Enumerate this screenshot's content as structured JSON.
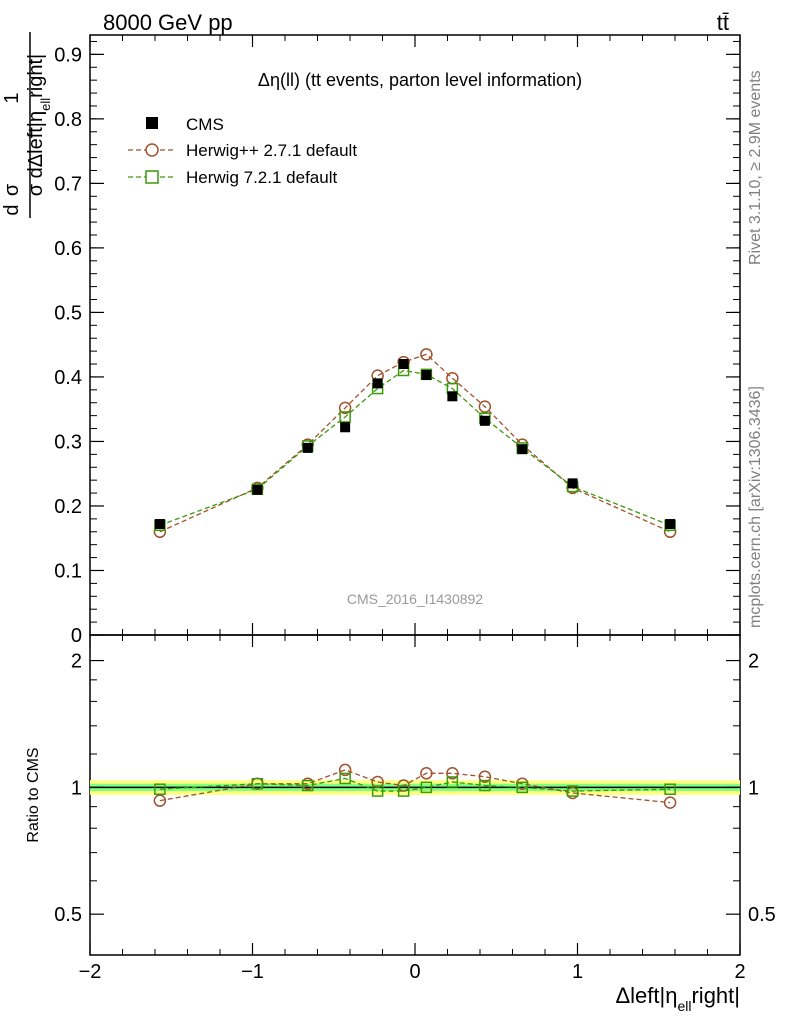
{
  "header": {
    "left": "8000 GeV pp",
    "right": "tt̄"
  },
  "side": {
    "rivet": "Rivet 3.1.10, ≥ 2.9M events",
    "mcplots": "mcplots.cern.ch [arXiv:1306.3436]"
  },
  "plot_title": "Δη(ll) (tt events, parton level information)",
  "watermark": "CMS_2016_I1430892",
  "ratio_ylabel": "Ratio to CMS",
  "xlabel": "Δleft|ηell right|",
  "ylabel": "1/σ dσ/dΔleft|ηell right|",
  "colors": {
    "cms": "#000000",
    "herwigpp": "#a0522d",
    "herwig7": "#3a9a0a",
    "band_outer": "#ffff80",
    "band_inner": "#80ff80",
    "ref_line": "#0000ff"
  },
  "chart_data": [
    {
      "type": "line",
      "panel": "main",
      "xlim": [
        -2,
        2
      ],
      "ylim": [
        0,
        0.93
      ],
      "xticks": [
        -2,
        -1,
        0,
        1,
        2
      ],
      "yticks": [
        0,
        0.1,
        0.2,
        0.3,
        0.4,
        0.5,
        0.6,
        0.7,
        0.8,
        0.9
      ],
      "ytick_labels": [
        "0",
        "0.1",
        "0.2",
        "0.3",
        "0.4",
        "0.5",
        "0.6",
        "0.7",
        "0.8",
        "0.9"
      ],
      "legend_position": "top-left",
      "x": [
        -1.57,
        -0.97,
        -0.66,
        -0.43,
        -0.23,
        -0.07,
        0.07,
        0.23,
        0.43,
        0.66,
        0.97,
        1.57
      ],
      "series": [
        {
          "name": "CMS",
          "marker": "filled-square",
          "values": [
            0.172,
            0.225,
            0.29,
            0.322,
            0.39,
            0.42,
            0.403,
            0.37,
            0.332,
            0.288,
            0.235,
            0.172
          ]
        },
        {
          "name": "Herwig++ 2.7.1 default",
          "marker": "open-circle",
          "values": [
            0.16,
            0.228,
            0.295,
            0.352,
            0.402,
            0.423,
            0.435,
            0.398,
            0.354,
            0.295,
            0.228,
            0.16
          ]
        },
        {
          "name": "Herwig 7.2.1 default",
          "marker": "open-square",
          "values": [
            0.17,
            0.226,
            0.293,
            0.338,
            0.382,
            0.41,
            0.404,
            0.382,
            0.336,
            0.29,
            0.23,
            0.17
          ]
        }
      ]
    },
    {
      "type": "line",
      "panel": "ratio",
      "xlim": [
        -2,
        2
      ],
      "ylim": [
        0.4,
        2.3
      ],
      "log_y": true,
      "yticks": [
        0.5,
        1,
        2
      ],
      "ytick_labels": [
        "0.5",
        "1",
        "2"
      ],
      "band_outer": [
        0.96,
        1.04
      ],
      "band_inner": [
        0.98,
        1.02
      ],
      "x": [
        -1.57,
        -0.97,
        -0.66,
        -0.43,
        -0.23,
        -0.07,
        0.07,
        0.23,
        0.43,
        0.66,
        0.97,
        1.57
      ],
      "series": [
        {
          "name": "Herwig++ 2.7.1 default",
          "values": [
            0.93,
            1.02,
            1.02,
            1.1,
            1.03,
            1.01,
            1.08,
            1.08,
            1.06,
            1.02,
            0.97,
            0.92
          ]
        },
        {
          "name": "Herwig 7.2.1 default",
          "values": [
            0.99,
            1.02,
            1.01,
            1.05,
            0.98,
            0.98,
            1.0,
            1.03,
            1.01,
            1.0,
            0.98,
            0.99
          ]
        }
      ]
    }
  ]
}
